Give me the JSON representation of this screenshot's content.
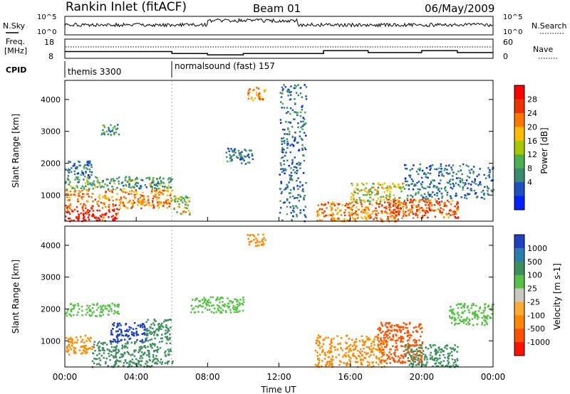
{
  "header": {
    "title": "Rankin Inlet (fitACF)",
    "beam": "Beam 01",
    "date": "06/May/2009"
  },
  "nsky_panel": {
    "label": "N.Sky",
    "right_label": "N.Search",
    "left_ticks": [
      "10^5",
      "10^0"
    ],
    "right_ticks": [
      "10^5",
      "10^0"
    ]
  },
  "freq_panel": {
    "label": "Freq.",
    "unit": "[MHz]",
    "left_ticks": [
      "18",
      "8"
    ],
    "right_label": "Nave",
    "right_ticks": [
      "60",
      "0"
    ]
  },
  "cpid_panel": {
    "label": "CPID",
    "segments": [
      {
        "start_hour": 0,
        "name": "themis 3300"
      },
      {
        "start_hour": 6,
        "name": "normalsound (fast) 157"
      }
    ]
  },
  "power_panel": {
    "ylabel": "Slant Range [km]",
    "colorbar_label": "Power [dB]",
    "colorbar_ticks": [
      "28",
      "24",
      "20",
      "16",
      "12",
      "8",
      "4"
    ],
    "colors": [
      "#ff0000",
      "#ee3300",
      "#ff7700",
      "#ffbb00",
      "#a8c800",
      "#4caf50",
      "#3a8a70",
      "#2050c0",
      "#0020ff"
    ]
  },
  "velocity_panel": {
    "ylabel": "Slant Range [km]",
    "colorbar_label": "Velocity [m s-1]",
    "colorbar_ticks": [
      "1000",
      "500",
      "100",
      "25",
      "-25",
      "-100",
      "-500",
      "-1000"
    ],
    "colors": [
      "#2040c0",
      "#2e7db0",
      "#3e8e5e",
      "#58c048",
      "#c8c8c0",
      "#ffaa30",
      "#ff8800",
      "#ff5000",
      "#ff1000"
    ]
  },
  "x_axis": {
    "label": "Time UT",
    "ticks": [
      "00:00",
      "04:00",
      "08:00",
      "12:00",
      "16:00",
      "20:00",
      "00:00"
    ]
  },
  "chart_data": {
    "type": "heatmap",
    "xlabel": "Time UT",
    "ylabel": "Slant Range [km]",
    "xlim_hours": [
      0,
      24
    ],
    "ylim_km": [
      180,
      4600
    ],
    "yticks_km": [
      1000,
      2000,
      3000,
      4000
    ],
    "power_regions": [
      {
        "t": [
          0.0,
          3.0
        ],
        "r": [
          200,
          600
        ],
        "level": 28
      },
      {
        "t": [
          0.0,
          6.0
        ],
        "r": [
          600,
          1200
        ],
        "level": 22
      },
      {
        "t": [
          0.0,
          6.0
        ],
        "r": [
          1200,
          1600
        ],
        "level": 12
      },
      {
        "t": [
          0.0,
          1.5
        ],
        "r": [
          1600,
          2100
        ],
        "level": 8
      },
      {
        "t": [
          2.0,
          3.0
        ],
        "r": [
          2900,
          3300
        ],
        "level": 12
      },
      {
        "t": [
          6.0,
          7.0
        ],
        "r": [
          400,
          1000
        ],
        "level": 16
      },
      {
        "t": [
          9.0,
          10.5
        ],
        "r": [
          2000,
          2500
        ],
        "level": 8
      },
      {
        "t": [
          10.2,
          11.2
        ],
        "r": [
          4000,
          4400
        ],
        "level": 20
      },
      {
        "t": [
          12.0,
          13.5
        ],
        "r": [
          200,
          4500
        ],
        "level": 8
      },
      {
        "t": [
          14.0,
          19.0
        ],
        "r": [
          200,
          800
        ],
        "level": 22
      },
      {
        "t": [
          16.0,
          19.0
        ],
        "r": [
          800,
          1400
        ],
        "level": 16
      },
      {
        "t": [
          18.0,
          22.0
        ],
        "r": [
          300,
          900
        ],
        "level": 24
      },
      {
        "t": [
          19.0,
          24.0
        ],
        "r": [
          900,
          2000
        ],
        "level": 8
      }
    ],
    "velocity_regions": [
      {
        "t": [
          0.0,
          1.5
        ],
        "r": [
          600,
          1200
        ],
        "level": -100
      },
      {
        "t": [
          1.5,
          6.0
        ],
        "r": [
          200,
          1000
        ],
        "level": 100
      },
      {
        "t": [
          2.5,
          4.5
        ],
        "r": [
          1000,
          1600
        ],
        "level": 1000
      },
      {
        "t": [
          4.5,
          6.0
        ],
        "r": [
          1000,
          1700
        ],
        "level": 100
      },
      {
        "t": [
          0.0,
          3.0
        ],
        "r": [
          1800,
          2200
        ],
        "level": 25
      },
      {
        "t": [
          7.0,
          10.0
        ],
        "r": [
          1900,
          2400
        ],
        "level": 25
      },
      {
        "t": [
          10.2,
          11.2
        ],
        "r": [
          4000,
          4400
        ],
        "level": -100
      },
      {
        "t": [
          14.0,
          18.0
        ],
        "r": [
          200,
          1200
        ],
        "level": -100
      },
      {
        "t": [
          17.5,
          20.0
        ],
        "r": [
          300,
          1600
        ],
        "level": -500
      },
      {
        "t": [
          19.0,
          22.0
        ],
        "r": [
          200,
          900
        ],
        "level": 100
      },
      {
        "t": [
          21.5,
          24.0
        ],
        "r": [
          1500,
          2200
        ],
        "level": 25
      }
    ],
    "freq_mhz": [
      {
        "t": [
          0.0,
          6.0
        ],
        "value": 11.5
      },
      {
        "t": [
          6.0,
          8.0
        ],
        "value": 10.5
      },
      {
        "t": [
          8.0,
          10.0
        ],
        "value": 9.8
      },
      {
        "t": [
          10.0,
          14.5
        ],
        "value": 10.5
      },
      {
        "t": [
          14.5,
          17.0
        ],
        "value": 12.0
      },
      {
        "t": [
          17.0,
          20.0
        ],
        "value": 11.0
      },
      {
        "t": [
          20.0,
          22.0
        ],
        "value": 12.0
      },
      {
        "t": [
          22.0,
          24.0
        ],
        "value": 11.0
      }
    ]
  }
}
